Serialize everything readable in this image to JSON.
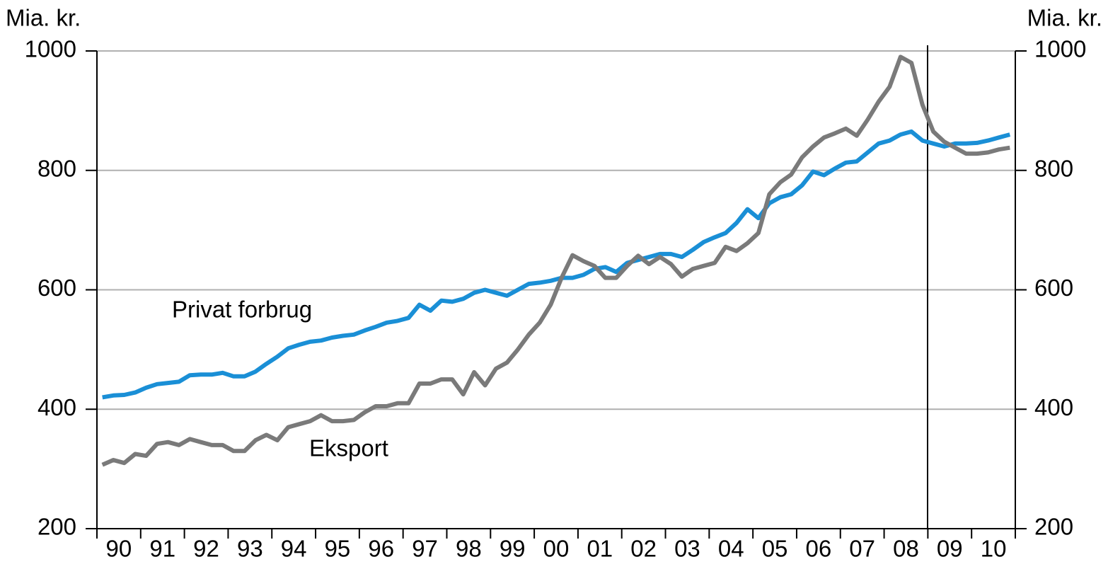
{
  "chart_data": {
    "type": "line",
    "y_label": "Mia. kr.",
    "y2_label": "Mia. kr.",
    "categories": [
      "90",
      null,
      null,
      null,
      "91",
      null,
      null,
      null,
      "92",
      null,
      null,
      null,
      "93",
      null,
      null,
      null,
      "94",
      null,
      null,
      null,
      "95",
      null,
      null,
      null,
      "96",
      null,
      null,
      null,
      "97",
      null,
      null,
      null,
      "98",
      null,
      null,
      null,
      "99",
      null,
      null,
      null,
      "00",
      null,
      null,
      null,
      "01",
      null,
      null,
      null,
      "02",
      null,
      null,
      null,
      "03",
      null,
      null,
      null,
      "04",
      null,
      null,
      null,
      "05",
      null,
      null,
      null,
      "06",
      null,
      null,
      null,
      "07",
      null,
      null,
      null,
      "08",
      null,
      null,
      null,
      "09",
      null,
      null,
      null,
      "10",
      null,
      null,
      null
    ],
    "series": [
      {
        "name": "Privat forbrug",
        "color": "#1a8fd6",
        "values": [
          420,
          423,
          424,
          428,
          436,
          442,
          444,
          446,
          457,
          458,
          458,
          461,
          455,
          455,
          463,
          476,
          488,
          502,
          508,
          513,
          515,
          520,
          523,
          525,
          532,
          538,
          545,
          548,
          553,
          575,
          565,
          582,
          580,
          585,
          595,
          600,
          595,
          590,
          600,
          610,
          612,
          615,
          620,
          620,
          625,
          635,
          638,
          630,
          645,
          650,
          655,
          660,
          660,
          655,
          667,
          680,
          688,
          695,
          712,
          735,
          720,
          745,
          755,
          760,
          775,
          798,
          792,
          803,
          813,
          815,
          830,
          845,
          850,
          860,
          865,
          850,
          845,
          840,
          845,
          845,
          846,
          850,
          855,
          860
        ]
      },
      {
        "name": "Eksport",
        "color": "#7a7a7a",
        "values": [
          307,
          315,
          310,
          325,
          322,
          342,
          345,
          340,
          350,
          345,
          340,
          340,
          330,
          330,
          348,
          357,
          348,
          370,
          375,
          380,
          390,
          380,
          380,
          382,
          395,
          405,
          405,
          410,
          410,
          443,
          443,
          450,
          450,
          425,
          462,
          440,
          468,
          478,
          500,
          525,
          545,
          575,
          620,
          658,
          648,
          640,
          620,
          620,
          640,
          657,
          643,
          655,
          643,
          622,
          635,
          640,
          645,
          672,
          665,
          678,
          695,
          760,
          780,
          793,
          822,
          840,
          855,
          862,
          870,
          858,
          885,
          915,
          940,
          990,
          980,
          910,
          865,
          848,
          838,
          828,
          828,
          830,
          835,
          838
        ]
      }
    ],
    "ylim": [
      200,
      1000
    ],
    "yticks": [
      200,
      400,
      600,
      800,
      1000
    ],
    "y2lim": [
      200,
      1000
    ],
    "y2ticks": [
      200,
      400,
      600,
      800,
      1000
    ],
    "grid": true
  }
}
